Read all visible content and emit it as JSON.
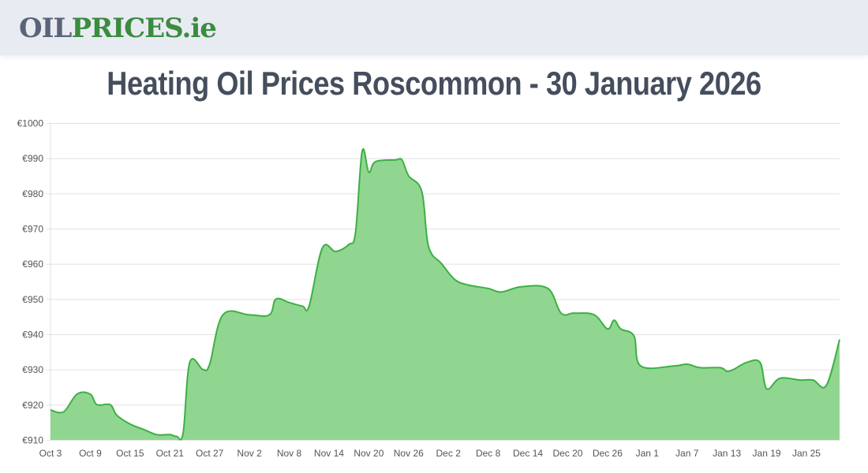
{
  "header": {
    "logo_part1": "OIL",
    "logo_part2": "PRICES.ie",
    "colors": {
      "logo_dark": "#5a6478",
      "logo_green": "#3a8c3e",
      "bar_bg": "#e9ebf3"
    }
  },
  "page": {
    "title": "Heating Oil Prices Roscommon - 30 January 2026"
  },
  "chart_data": {
    "type": "area",
    "title": "Heating Oil Prices Roscommon - 30 January 2026",
    "xlabel": "",
    "ylabel": "",
    "ylim": [
      910,
      1000
    ],
    "yticks": [
      910,
      920,
      930,
      940,
      950,
      960,
      970,
      980,
      990,
      1000
    ],
    "ytick_labels": [
      "€910",
      "€920",
      "€930",
      "€940",
      "€950",
      "€960",
      "€970",
      "€980",
      "€990",
      "€1000"
    ],
    "xtick_labels": [
      "Oct 3",
      "Oct 9",
      "Oct 15",
      "Oct 21",
      "Oct 27",
      "Nov 2",
      "Nov 8",
      "Nov 14",
      "Nov 20",
      "Nov 26",
      "Dec 2",
      "Dec 8",
      "Dec 14",
      "Dec 20",
      "Dec 26",
      "Jan 1",
      "Jan 7",
      "Jan 13",
      "Jan 19",
      "Jan 25"
    ],
    "x_day_range": [
      0,
      119
    ],
    "grid": true,
    "legend": false,
    "colors": {
      "line": "#3cb043",
      "fill": "#90d690",
      "grid": "#e0e0e0"
    },
    "series": [
      {
        "name": "Price",
        "points": [
          {
            "day": 0,
            "date": "Oct 3",
            "value": 918.5
          },
          {
            "day": 2,
            "date": "Oct 5",
            "value": 918
          },
          {
            "day": 4,
            "date": "Oct 7",
            "value": 923
          },
          {
            "day": 6,
            "date": "Oct 9",
            "value": 923
          },
          {
            "day": 7,
            "date": "Oct 10",
            "value": 920
          },
          {
            "day": 9,
            "date": "Oct 12",
            "value": 920
          },
          {
            "day": 10,
            "date": "Oct 13",
            "value": 917
          },
          {
            "day": 12,
            "date": "Oct 15",
            "value": 914.5
          },
          {
            "day": 14,
            "date": "Oct 17",
            "value": 913
          },
          {
            "day": 16,
            "date": "Oct 19",
            "value": 911.5
          },
          {
            "day": 18,
            "date": "Oct 21",
            "value": 911.5
          },
          {
            "day": 19,
            "date": "Oct 22",
            "value": 911
          },
          {
            "day": 20,
            "date": "Oct 23",
            "value": 912
          },
          {
            "day": 21,
            "date": "Oct 24",
            "value": 932
          },
          {
            "day": 23,
            "date": "Oct 26",
            "value": 930
          },
          {
            "day": 24,
            "date": "Oct 27",
            "value": 931.5
          },
          {
            "day": 26,
            "date": "Oct 29",
            "value": 945.5
          },
          {
            "day": 30,
            "date": "Nov 2",
            "value": 945.5
          },
          {
            "day": 33,
            "date": "Nov 5",
            "value": 945.5
          },
          {
            "day": 34,
            "date": "Nov 6",
            "value": 950
          },
          {
            "day": 36,
            "date": "Nov 8",
            "value": 949
          },
          {
            "day": 38,
            "date": "Nov 10",
            "value": 948
          },
          {
            "day": 39,
            "date": "Nov 11",
            "value": 948
          },
          {
            "day": 41,
            "date": "Nov 13",
            "value": 964.5
          },
          {
            "day": 43,
            "date": "Nov 15",
            "value": 963.5
          },
          {
            "day": 45,
            "date": "Nov 17",
            "value": 965.5
          },
          {
            "day": 46,
            "date": "Nov 18",
            "value": 969
          },
          {
            "day": 47,
            "date": "Nov 19",
            "value": 992
          },
          {
            "day": 48,
            "date": "Nov 20",
            "value": 986
          },
          {
            "day": 49,
            "date": "Nov 21",
            "value": 989
          },
          {
            "day": 52,
            "date": "Nov 24",
            "value": 989.5
          },
          {
            "day": 53,
            "date": "Nov 25",
            "value": 989.5
          },
          {
            "day": 54,
            "date": "Nov 26",
            "value": 985
          },
          {
            "day": 56,
            "date": "Nov 28",
            "value": 980.5
          },
          {
            "day": 57,
            "date": "Nov 29",
            "value": 965
          },
          {
            "day": 59,
            "date": "Dec 1",
            "value": 960
          },
          {
            "day": 61,
            "date": "Dec 3",
            "value": 955.5
          },
          {
            "day": 63,
            "date": "Dec 5",
            "value": 954
          },
          {
            "day": 66,
            "date": "Dec 8",
            "value": 953
          },
          {
            "day": 68,
            "date": "Dec 10",
            "value": 952
          },
          {
            "day": 71,
            "date": "Dec 13",
            "value": 953.5
          },
          {
            "day": 75,
            "date": "Dec 17",
            "value": 953
          },
          {
            "day": 77,
            "date": "Dec 19",
            "value": 946
          },
          {
            "day": 79,
            "date": "Dec 21",
            "value": 946
          },
          {
            "day": 82,
            "date": "Dec 24",
            "value": 945.5
          },
          {
            "day": 84,
            "date": "Dec 26",
            "value": 941.5
          },
          {
            "day": 85,
            "date": "Dec 27",
            "value": 944
          },
          {
            "day": 86,
            "date": "Dec 28",
            "value": 941.5
          },
          {
            "day": 88,
            "date": "Dec 30",
            "value": 939.5
          },
          {
            "day": 89,
            "date": "Dec 31",
            "value": 931
          },
          {
            "day": 94,
            "date": "Jan 5",
            "value": 931
          },
          {
            "day": 96,
            "date": "Jan 7",
            "value": 931.5
          },
          {
            "day": 98,
            "date": "Jan 9",
            "value": 930.5
          },
          {
            "day": 101,
            "date": "Jan 12",
            "value": 930.5
          },
          {
            "day": 102,
            "date": "Jan 13",
            "value": 929.5
          },
          {
            "day": 103,
            "date": "Jan 14",
            "value": 930
          },
          {
            "day": 105,
            "date": "Jan 16",
            "value": 932
          },
          {
            "day": 107,
            "date": "Jan 18",
            "value": 932
          },
          {
            "day": 108,
            "date": "Jan 19",
            "value": 924.5
          },
          {
            "day": 110,
            "date": "Jan 21",
            "value": 927.5
          },
          {
            "day": 113,
            "date": "Jan 24",
            "value": 927
          },
          {
            "day": 115,
            "date": "Jan 26",
            "value": 927
          },
          {
            "day": 117,
            "date": "Jan 28",
            "value": 925.5
          },
          {
            "day": 119,
            "date": "Jan 30",
            "value": 938.5
          }
        ]
      }
    ]
  }
}
